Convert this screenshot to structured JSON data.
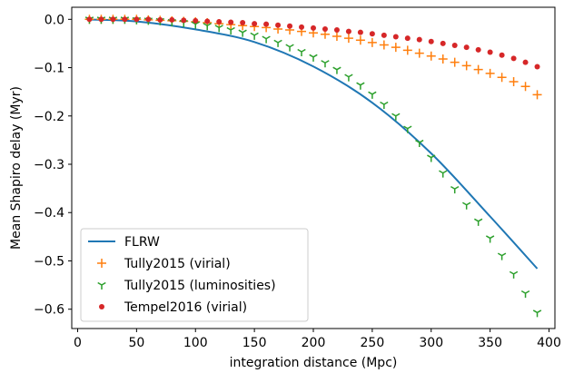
{
  "chart_data": {
    "type": "line",
    "title": "",
    "xlabel": "integration distance (Mpc)",
    "ylabel": "Mean Shapiro delay (Myr)",
    "xlim": [
      -5,
      405
    ],
    "ylim": [
      -0.64,
      0.025
    ],
    "x_ticks": [
      0,
      50,
      100,
      150,
      200,
      250,
      300,
      350,
      400
    ],
    "y_ticks": [
      0.0,
      -0.1,
      -0.2,
      -0.3,
      -0.4,
      -0.5,
      -0.6
    ],
    "x_tick_labels": [
      "0",
      "50",
      "100",
      "150",
      "200",
      "250",
      "300",
      "350",
      "400"
    ],
    "y_tick_labels": [
      "0.0",
      "−0.1",
      "−0.2",
      "−0.3",
      "−0.4",
      "−0.5",
      "−0.6"
    ],
    "grid": false,
    "legend_position": "lower-left",
    "series": [
      {
        "name": "FLRW",
        "marker": "line",
        "color": "#1f77b4",
        "x": [
          10,
          50,
          100,
          150,
          200,
          250,
          300,
          350,
          390
        ],
        "y": [
          -0.0004,
          -0.0043,
          -0.0208,
          -0.0469,
          -0.0975,
          -0.1725,
          -0.2775,
          -0.408,
          -0.516
        ]
      },
      {
        "name": "Tully2015 (virial)",
        "marker": "plus",
        "color": "#ff7f0e",
        "x": [
          10,
          20,
          30,
          40,
          50,
          60,
          70,
          80,
          90,
          100,
          110,
          120,
          130,
          140,
          150,
          160,
          170,
          180,
          190,
          200,
          210,
          220,
          230,
          240,
          250,
          260,
          270,
          280,
          290,
          300,
          310,
          320,
          330,
          340,
          350,
          360,
          370,
          380,
          390
        ],
        "y": [
          0.0,
          0.0,
          0.0,
          0.0,
          0.0,
          -0.001,
          -0.002,
          -0.003,
          -0.004,
          -0.005,
          -0.007,
          -0.009,
          -0.011,
          -0.013,
          -0.015,
          -0.017,
          -0.02,
          -0.022,
          -0.025,
          -0.028,
          -0.031,
          -0.035,
          -0.039,
          -0.043,
          -0.048,
          -0.053,
          -0.058,
          -0.064,
          -0.07,
          -0.076,
          -0.082,
          -0.089,
          -0.096,
          -0.104,
          -0.112,
          -0.12,
          -0.129,
          -0.139,
          -0.156
        ]
      },
      {
        "name": "Tully2015 (luminosities)",
        "marker": "tri-down",
        "color": "#2ca02c",
        "x": [
          10,
          20,
          30,
          40,
          50,
          60,
          70,
          80,
          90,
          100,
          110,
          120,
          130,
          140,
          150,
          160,
          170,
          180,
          190,
          200,
          210,
          220,
          230,
          240,
          250,
          260,
          270,
          280,
          290,
          300,
          310,
          320,
          330,
          340,
          350,
          360,
          370,
          380,
          390
        ],
        "y": [
          0.0,
          0.0,
          0.0,
          0.0,
          -0.001,
          -0.002,
          -0.003,
          -0.005,
          -0.007,
          -0.01,
          -0.013,
          -0.017,
          -0.022,
          -0.027,
          -0.033,
          -0.04,
          -0.048,
          -0.057,
          -0.067,
          -0.078,
          -0.09,
          -0.104,
          -0.119,
          -0.136,
          -0.155,
          -0.176,
          -0.2,
          -0.226,
          -0.255,
          -0.286,
          -0.318,
          -0.351,
          -0.384,
          -0.418,
          -0.453,
          -0.489,
          -0.527,
          -0.567,
          -0.607
        ]
      },
      {
        "name": "Tempel2016 (virial)",
        "marker": "circle",
        "color": "#d62728",
        "x": [
          10,
          20,
          30,
          40,
          50,
          60,
          70,
          80,
          90,
          100,
          110,
          120,
          130,
          140,
          150,
          160,
          170,
          180,
          190,
          200,
          210,
          220,
          230,
          240,
          250,
          260,
          270,
          280,
          290,
          300,
          310,
          320,
          330,
          340,
          350,
          360,
          370,
          380,
          390
        ],
        "y": [
          0.0,
          0.0,
          0.0,
          0.0,
          0.0,
          0.0,
          -0.001,
          -0.001,
          -0.002,
          -0.003,
          -0.004,
          -0.005,
          -0.006,
          -0.007,
          -0.009,
          -0.01,
          -0.012,
          -0.014,
          -0.016,
          -0.018,
          -0.02,
          -0.022,
          -0.025,
          -0.027,
          -0.03,
          -0.033,
          -0.036,
          -0.039,
          -0.042,
          -0.046,
          -0.05,
          -0.054,
          -0.058,
          -0.063,
          -0.068,
          -0.074,
          -0.081,
          -0.089,
          -0.098
        ]
      }
    ]
  }
}
